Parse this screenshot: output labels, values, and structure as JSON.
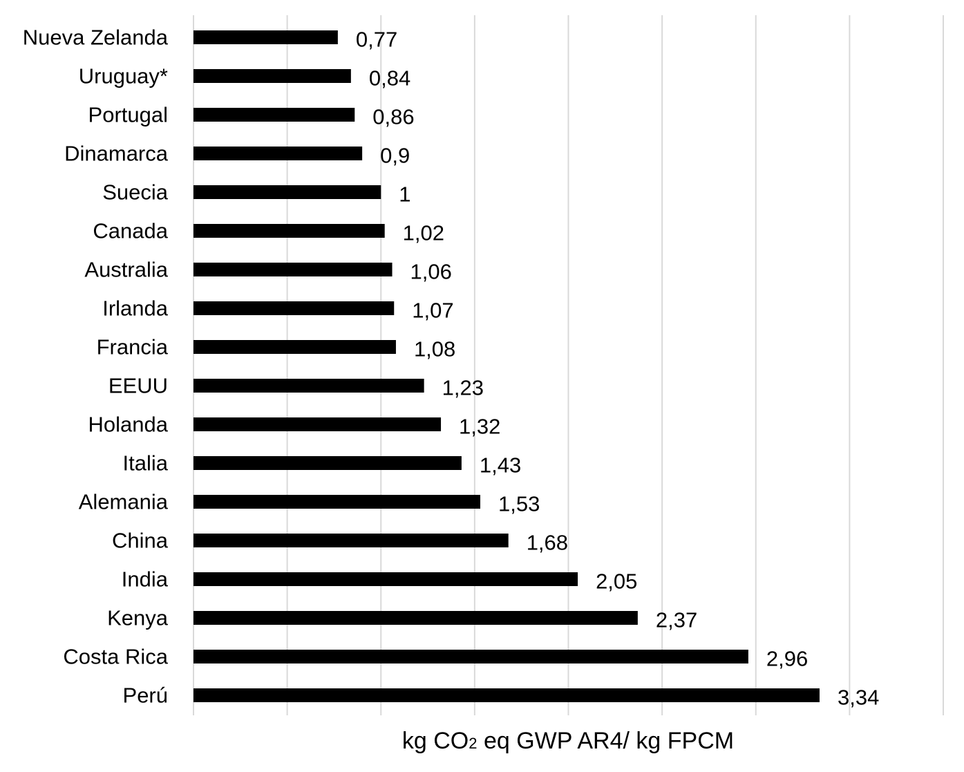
{
  "chart_data": {
    "type": "bar",
    "orientation": "horizontal",
    "categories": [
      "Nueva Zelanda",
      "Uruguay*",
      "Portugal",
      "Dinamarca",
      "Suecia",
      "Canada",
      "Australia",
      "Irlanda",
      "Francia",
      "EEUU",
      "Holanda",
      "Italia",
      "Alemania",
      "China",
      "India",
      "Kenya",
      "Costa Rica",
      "Perú"
    ],
    "values": [
      0.77,
      0.84,
      0.86,
      0.9,
      1,
      1.02,
      1.06,
      1.07,
      1.08,
      1.23,
      1.32,
      1.43,
      1.53,
      1.68,
      2.05,
      2.37,
      2.96,
      3.34
    ],
    "data_labels": [
      "0,77",
      "0,84",
      "0,86",
      "0,9",
      "1",
      "1,02",
      "1,06",
      "1,07",
      "1,08",
      "1,23",
      "1,32",
      "1,43",
      "1,53",
      "1,68",
      "2,05",
      "2,37",
      "2,96",
      "3,34"
    ],
    "title": "",
    "xlabel_parts": {
      "before": "kg CO",
      "subscript": "2",
      "after": " eq GWP AR4/ kg FPCM"
    },
    "ylabel": "",
    "xlim": [
      0,
      4
    ],
    "gridline_step": 0.5,
    "grid": true,
    "legend": "none",
    "bar_color": "#000000",
    "grid_color": "#d9d9d9"
  }
}
